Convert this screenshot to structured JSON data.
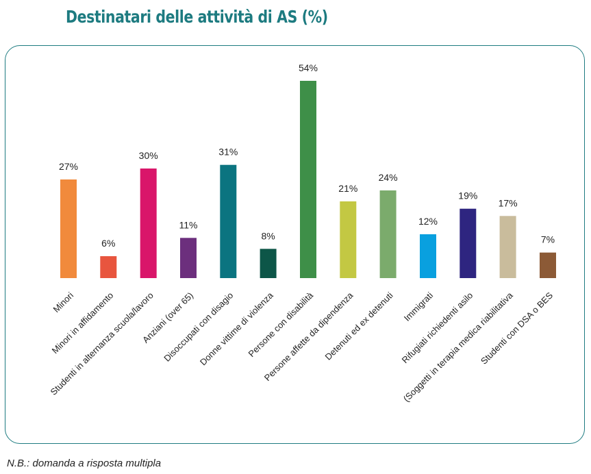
{
  "title": "Destinatari delle attività di AS (%)",
  "note": "N.B.: domanda a risposta multipla",
  "chart_data": {
    "type": "bar",
    "title": "Destinatari delle attività di AS (%)",
    "xlabel": "",
    "ylabel": "",
    "ylim": [
      0,
      54
    ],
    "grid": false,
    "legend": "none",
    "value_suffix": "%",
    "categories": [
      "Minori",
      "Minori in affidamento",
      "Studenti in alternanza scuola/lavoro",
      "Anziani (over 65)",
      "Disoccupati con disagio",
      "Donne vittime di violenza",
      "Persone con disabilità",
      "Persone affette da dipendenza",
      "Detenuti ed ex detenuti",
      "Immigrati",
      "Rifugiati richiedenti asilo",
      "(Soggetti in terapia medica riabilitativa",
      "Studenti con DSA o BES"
    ],
    "values": [
      27,
      6,
      30,
      11,
      31,
      8,
      54,
      21,
      24,
      12,
      19,
      17,
      7
    ],
    "colors": [
      "#f18a3c",
      "#e8553e",
      "#d9166a",
      "#6c2f7d",
      "#0b7480",
      "#0d5648",
      "#3e8f48",
      "#c3c843",
      "#7bab6c",
      "#09a0df",
      "#2e2580",
      "#c9bc9c",
      "#8c5a36"
    ]
  }
}
